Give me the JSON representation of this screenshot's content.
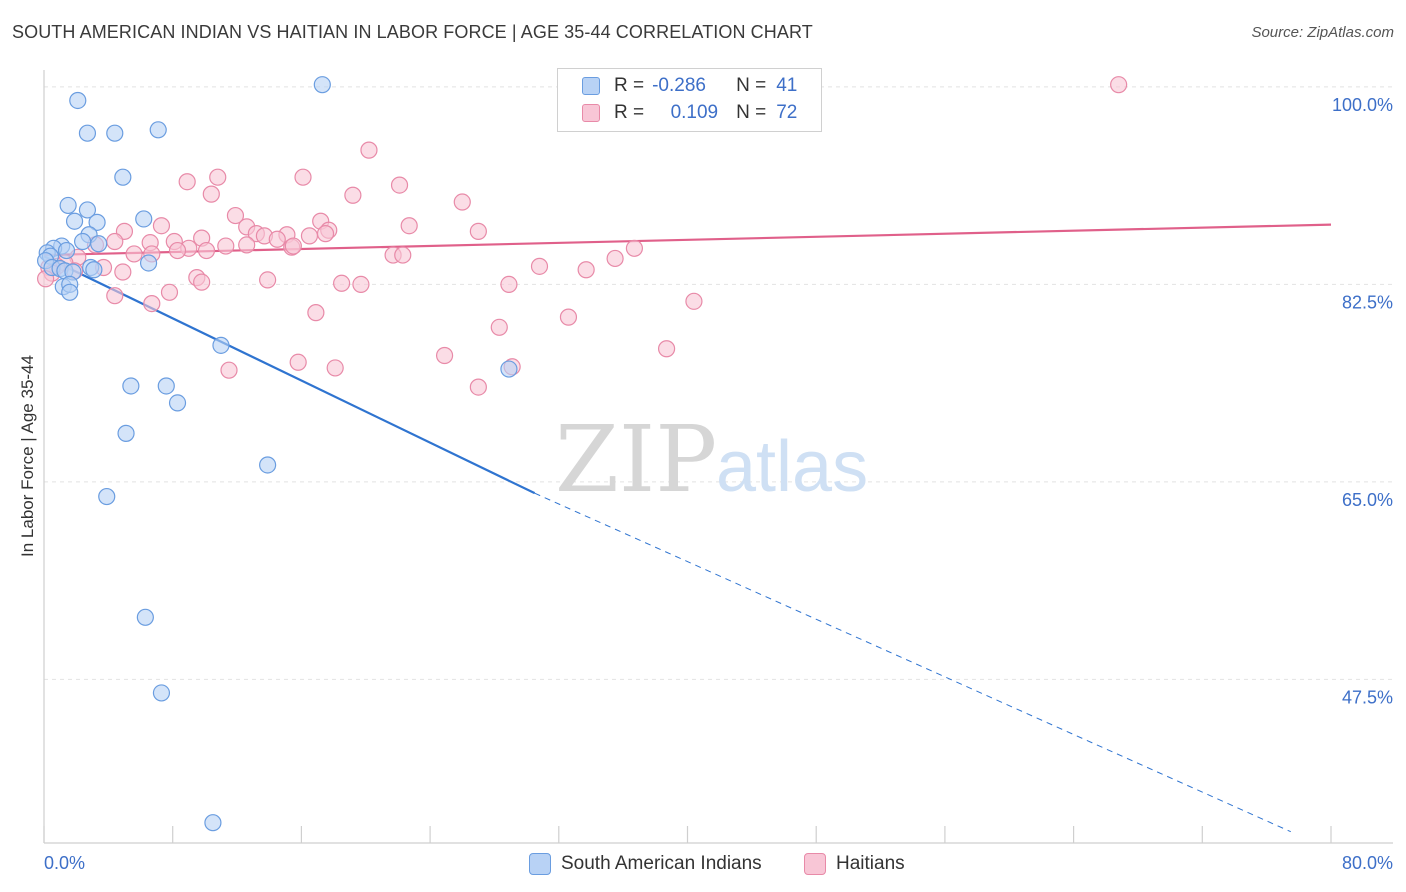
{
  "header": {
    "title": "SOUTH AMERICAN INDIAN VS HAITIAN IN LABOR FORCE | AGE 35-44 CORRELATION CHART",
    "source": "Source: ZipAtlas.com"
  },
  "watermark": {
    "zip": "ZIP",
    "atlas": "atlas"
  },
  "legend": {
    "rows": [
      {
        "r_label": "R =",
        "r_value": "-0.286",
        "n_label": "N =",
        "n_value": "41"
      },
      {
        "r_label": "R =",
        "r_value": "0.109",
        "n_label": "N =",
        "n_value": "72"
      }
    ]
  },
  "bottom_legend": {
    "series1": "South American Indians",
    "series2": "Haitians"
  },
  "colors": {
    "blue_fill": "#b8d2f5",
    "blue_stroke": "#6a9de0",
    "blue_line": "#2f74d0",
    "pink_fill": "#f8c6d6",
    "pink_stroke": "#e88aa8",
    "pink_line": "#e0608a",
    "tick_text": "#3d6fc8",
    "grid": "#e2e2e2"
  },
  "chart_data": {
    "type": "scatter",
    "title": "SOUTH AMERICAN INDIAN VS HAITIAN IN LABOR FORCE | AGE 35-44 CORRELATION CHART",
    "xlabel": "",
    "ylabel": "In Labor Force | Age 35-44",
    "xlim": [
      0,
      80
    ],
    "ylim": [
      33,
      101.5
    ],
    "x_tick_labels": [
      "0.0%",
      "80.0%"
    ],
    "y_ticks": [
      47.5,
      65.0,
      82.5,
      100.0
    ],
    "y_tick_labels": [
      "47.5%",
      "65.0%",
      "82.5%",
      "100.0%"
    ],
    "grid": true,
    "legend_position": "top-center",
    "series": [
      {
        "name": "South American Indians",
        "stats": {
          "R": -0.286,
          "N": 41
        },
        "trend": {
          "x0": 0.0,
          "y0": 85.0,
          "x1": 30.5,
          "y1": 64.0,
          "dash_to_x": 77.5,
          "dash_to_y": 34.0
        },
        "points": [
          [
            17.3,
            100.2
          ],
          [
            2.1,
            98.8
          ],
          [
            2.7,
            95.9
          ],
          [
            4.4,
            95.9
          ],
          [
            7.1,
            96.2
          ],
          [
            4.9,
            92.0
          ],
          [
            1.5,
            89.5
          ],
          [
            2.7,
            89.1
          ],
          [
            1.9,
            88.1
          ],
          [
            3.3,
            88.0
          ],
          [
            6.2,
            88.3
          ],
          [
            2.8,
            86.9
          ],
          [
            2.4,
            86.3
          ],
          [
            3.4,
            86.1
          ],
          [
            1.1,
            85.9
          ],
          [
            0.6,
            85.7
          ],
          [
            1.4,
            85.5
          ],
          [
            0.2,
            85.3
          ],
          [
            0.4,
            85.0
          ],
          [
            0.1,
            84.6
          ],
          [
            0.5,
            84.0
          ],
          [
            1.0,
            83.9
          ],
          [
            1.3,
            83.7
          ],
          [
            1.8,
            83.6
          ],
          [
            2.9,
            84.0
          ],
          [
            3.1,
            83.8
          ],
          [
            6.5,
            84.4
          ],
          [
            1.2,
            82.3
          ],
          [
            1.6,
            82.5
          ],
          [
            1.6,
            81.8
          ],
          [
            11.0,
            77.1
          ],
          [
            5.4,
            73.5
          ],
          [
            7.6,
            73.5
          ],
          [
            8.3,
            72.0
          ],
          [
            28.9,
            75.0
          ],
          [
            5.1,
            69.3
          ],
          [
            13.9,
            66.5
          ],
          [
            3.9,
            63.7
          ],
          [
            6.3,
            53.0
          ],
          [
            7.3,
            46.3
          ],
          [
            10.5,
            34.8
          ]
        ]
      },
      {
        "name": "Haitians",
        "stats": {
          "R": 0.109,
          "N": 72
        },
        "trend": {
          "x0": 0.0,
          "y0": 85.1,
          "x1": 80.0,
          "y1": 87.8
        },
        "points": [
          [
            66.8,
            100.2
          ],
          [
            20.2,
            94.4
          ],
          [
            10.8,
            92.0
          ],
          [
            16.1,
            92.0
          ],
          [
            8.9,
            91.6
          ],
          [
            22.1,
            91.3
          ],
          [
            10.4,
            90.5
          ],
          [
            19.2,
            90.4
          ],
          [
            26.0,
            89.8
          ],
          [
            11.9,
            88.6
          ],
          [
            17.2,
            88.1
          ],
          [
            22.7,
            87.7
          ],
          [
            12.6,
            87.6
          ],
          [
            7.3,
            87.7
          ],
          [
            17.7,
            87.3
          ],
          [
            5.0,
            87.2
          ],
          [
            27.0,
            87.2
          ],
          [
            13.2,
            87.0
          ],
          [
            15.1,
            86.9
          ],
          [
            13.7,
            86.8
          ],
          [
            16.5,
            86.8
          ],
          [
            17.5,
            87.0
          ],
          [
            4.4,
            86.3
          ],
          [
            9.8,
            86.6
          ],
          [
            14.5,
            86.5
          ],
          [
            8.1,
            86.3
          ],
          [
            6.6,
            86.2
          ],
          [
            3.2,
            86.0
          ],
          [
            12.6,
            86.0
          ],
          [
            11.3,
            85.9
          ],
          [
            9.0,
            85.7
          ],
          [
            10.1,
            85.5
          ],
          [
            8.3,
            85.5
          ],
          [
            15.4,
            85.8
          ],
          [
            15.5,
            85.9
          ],
          [
            5.6,
            85.2
          ],
          [
            6.7,
            85.2
          ],
          [
            21.7,
            85.1
          ],
          [
            22.3,
            85.1
          ],
          [
            36.7,
            85.7
          ],
          [
            2.1,
            84.9
          ],
          [
            1.3,
            84.4
          ],
          [
            0.8,
            84.1
          ],
          [
            0.3,
            84.0
          ],
          [
            0.5,
            83.5
          ],
          [
            1.9,
            83.7
          ],
          [
            3.7,
            84.0
          ],
          [
            4.9,
            83.6
          ],
          [
            30.8,
            84.1
          ],
          [
            33.7,
            83.8
          ],
          [
            35.5,
            84.8
          ],
          [
            0.1,
            83.0
          ],
          [
            9.5,
            83.1
          ],
          [
            9.8,
            82.7
          ],
          [
            13.9,
            82.9
          ],
          [
            18.5,
            82.6
          ],
          [
            19.7,
            82.5
          ],
          [
            28.9,
            82.5
          ],
          [
            7.8,
            81.8
          ],
          [
            4.4,
            81.5
          ],
          [
            6.7,
            80.8
          ],
          [
            16.9,
            80.0
          ],
          [
            28.3,
            78.7
          ],
          [
            40.4,
            81.0
          ],
          [
            38.7,
            76.8
          ],
          [
            15.8,
            75.6
          ],
          [
            18.1,
            75.1
          ],
          [
            29.1,
            75.2
          ],
          [
            27.0,
            73.4
          ],
          [
            11.5,
            74.9
          ],
          [
            24.9,
            76.2
          ],
          [
            32.6,
            79.6
          ]
        ]
      }
    ]
  }
}
